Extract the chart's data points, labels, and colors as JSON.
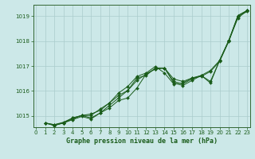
{
  "title": "Graphe pression niveau de la mer (hPa)",
  "background_color": "#cce8e8",
  "grid_color": "#aacccc",
  "line_color": "#1a5c1a",
  "spine_color": "#336633",
  "xlim": [
    -0.3,
    23.3
  ],
  "ylim": [
    1014.55,
    1019.45
  ],
  "yticks": [
    1015,
    1016,
    1017,
    1018,
    1019
  ],
  "xticks": [
    0,
    1,
    2,
    3,
    4,
    5,
    6,
    7,
    8,
    9,
    10,
    11,
    12,
    13,
    14,
    15,
    16,
    17,
    18,
    19,
    20,
    21,
    22,
    23
  ],
  "series": [
    [
      1014.72,
      1014.62,
      1014.72,
      1014.85,
      1014.98,
      1014.88,
      1015.12,
      1015.32,
      1015.62,
      1015.72,
      1016.12,
      1016.68,
      1016.88,
      1016.92,
      1016.38,
      1016.28,
      1016.48,
      1016.62,
      1016.38,
      1017.22,
      1018.02,
      1019.02,
      1019.22
    ],
    [
      1014.72,
      1014.62,
      1014.72,
      1014.92,
      1015.02,
      1015.02,
      1015.28,
      1015.52,
      1015.82,
      1016.02,
      1016.52,
      1016.62,
      1016.92,
      1016.92,
      1016.32,
      1016.22,
      1016.42,
      1016.62,
      1016.82,
      1017.22,
      1018.02,
      1019.02,
      1019.22
    ],
    [
      1014.72,
      1014.65,
      1014.75,
      1014.92,
      1015.02,
      1015.08,
      1015.22,
      1015.52,
      1015.92,
      1016.18,
      1016.58,
      1016.72,
      1016.98,
      1016.72,
      1016.28,
      1016.32,
      1016.52,
      1016.62,
      1016.32,
      1017.22,
      1018.02,
      1018.92,
      1019.22
    ],
    [
      1014.72,
      1014.65,
      1014.72,
      1014.88,
      1015.02,
      1014.92,
      1015.12,
      1015.42,
      1015.72,
      1016.02,
      1016.42,
      1016.68,
      1016.88,
      1016.92,
      1016.48,
      1016.38,
      1016.52,
      1016.58,
      1016.78,
      1017.18,
      1017.98,
      1018.98,
      1019.18
    ]
  ],
  "x_start": 1,
  "tick_fontsize": 5,
  "label_fontsize": 6,
  "marker_size": 2.0,
  "linewidth": 0.7
}
